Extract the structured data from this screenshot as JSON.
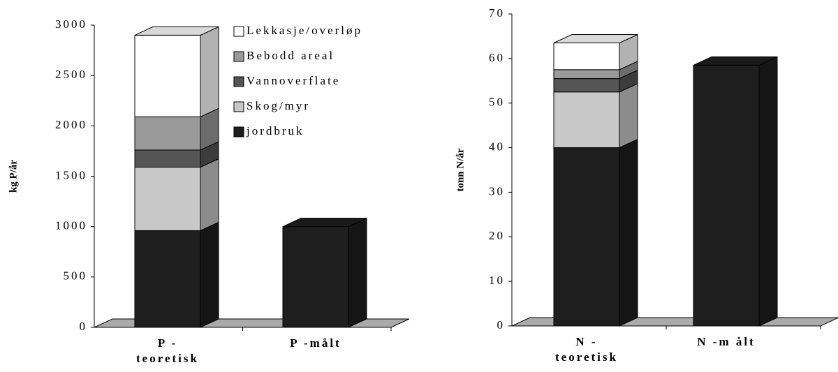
{
  "chart_data": [
    {
      "type": "bar",
      "stacked": true,
      "ylabel": "kg P/år",
      "categories": [
        [
          "P -",
          "teoretisk"
        ],
        "P -målt"
      ],
      "series": [
        {
          "name": "Lekkasje/overløp",
          "color": "#ffffff",
          "values": [
            810,
            null
          ]
        },
        {
          "name": "Bebodd areal",
          "color": "#9a9a9a",
          "values": [
            330,
            null
          ]
        },
        {
          "name": "Vannoverflate",
          "color": "#555555",
          "values": [
            170,
            null
          ]
        },
        {
          "name": "Skog/myr",
          "color": "#c8c8c8",
          "values": [
            630,
            null
          ]
        },
        {
          "name": "jordbruk",
          "color": "#1e1e1e",
          "values": [
            960,
            1000
          ]
        }
      ],
      "ylim": [
        0,
        3000
      ],
      "yticks": [
        0,
        500,
        1000,
        1500,
        2000,
        2500,
        3000
      ],
      "legend": "inside"
    },
    {
      "type": "bar",
      "stacked": true,
      "ylabel": "tonn N/år",
      "categories": [
        [
          "N -",
          "teoretisk"
        ],
        "N -m ålt"
      ],
      "series": [
        {
          "color": "#ffffff",
          "values": [
            6,
            null
          ]
        },
        {
          "color": "#9a9a9a",
          "values": [
            2,
            null
          ]
        },
        {
          "color": "#555555",
          "values": [
            3,
            null
          ]
        },
        {
          "color": "#c8c8c8",
          "values": [
            12.5,
            null
          ]
        },
        {
          "color": "#1e1e1e",
          "values": [
            40,
            58.5
          ]
        }
      ],
      "ylim": [
        0,
        70
      ],
      "yticks": [
        0,
        10,
        20,
        30,
        40,
        50,
        60,
        70
      ]
    }
  ]
}
